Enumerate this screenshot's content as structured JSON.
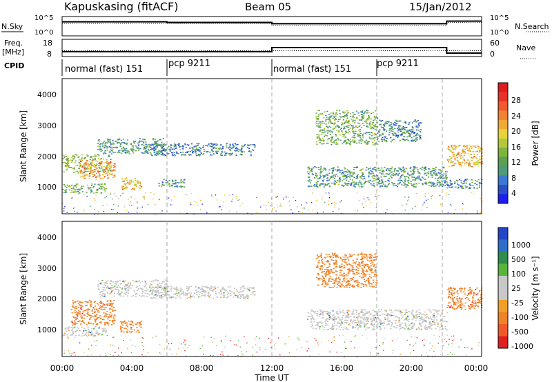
{
  "header": {
    "station": "Kapuskasing (fitACF)",
    "beam": "Beam 05",
    "date": "15/Jan/2012"
  },
  "noise_panel": {
    "left_label": "N.Sky",
    "right_label": "N.Search",
    "left_ticks": [
      "10^5",
      "10^0"
    ],
    "right_ticks": [
      "10^5",
      "10^0"
    ]
  },
  "freq_panel": {
    "left_label_top": "Freq.",
    "left_label_bottom": "[MHz]",
    "right_label": "Nave",
    "left_ticks": [
      "18",
      "8"
    ],
    "right_ticks": [
      "60",
      "0"
    ]
  },
  "cpid": {
    "label": "CPID",
    "segments": [
      {
        "text": "normal (fast) 151",
        "start_hour": 0
      },
      {
        "text": "pcp 9211",
        "start_hour": 6
      },
      {
        "text": "normal (fast) 151",
        "start_hour": 12
      },
      {
        "text": "pcp 9211",
        "start_hour": 18
      }
    ]
  },
  "range_axis": {
    "label": "Slant Range [km]",
    "ticks": [
      "1000",
      "2000",
      "3000",
      "4000"
    ]
  },
  "time_axis": {
    "label": "Time UT",
    "ticks": [
      "00:00",
      "04:00",
      "08:00",
      "12:00",
      "16:00",
      "20:00",
      "00:00"
    ]
  },
  "power_colorbar": {
    "label": "Power [dB]",
    "ticks": [
      "4",
      "8",
      "12",
      "16",
      "20",
      "24",
      "28"
    ],
    "colors": [
      "#1e1ef0",
      "#2a50c8",
      "#3c7ad2",
      "#4f9a78",
      "#5aa050",
      "#7cb43c",
      "#b4c83c",
      "#e8d23c",
      "#f0aa32",
      "#f08232",
      "#f05a2d",
      "#e83228",
      "#dc1e1e"
    ]
  },
  "velocity_colorbar": {
    "label": "Velocity [m s⁻¹]",
    "ticks": [
      "1000",
      "500",
      "100",
      "25",
      "-25",
      "-100",
      "-500",
      "-1000"
    ],
    "colors": [
      "#2346c8",
      "#2e6ec8",
      "#2e8c50",
      "#5ab43c",
      "#c8c8c8",
      "#c8c8c8",
      "#f0a028",
      "#f08228",
      "#f05a28",
      "#e02020"
    ]
  },
  "chart_data": [
    {
      "type": "line",
      "title": "Kapuskasing (fitACF) Beam 05 15/Jan/2012",
      "series": [
        {
          "name": "N.Sky",
          "x_hours": [
            0,
            6,
            12,
            22,
            24
          ],
          "values_log10": [
            4.0,
            3.8,
            3.4,
            4.2,
            4.2
          ]
        },
        {
          "name": "N.Search",
          "x_hours": [
            0,
            6,
            12,
            22,
            24
          ],
          "values_log10": [
            3.5,
            3.4,
            2.8,
            3.8,
            3.8
          ]
        }
      ]
    },
    {
      "type": "line",
      "series": [
        {
          "name": "Freq.",
          "x_hours": [
            0,
            12,
            22,
            24
          ],
          "values": [
            10.5,
            13.5,
            9.5,
            9.5
          ]
        },
        {
          "name": "Nave",
          "x_hours": [
            0,
            12,
            22,
            24
          ],
          "values": [
            20,
            20,
            20,
            20
          ]
        }
      ]
    },
    {
      "type": "heatmap",
      "ylabel": "Slant Range [km]",
      "xlabel": "Time UT",
      "xlim_hours": [
        0,
        24
      ],
      "ylim_km": [
        180,
        4500
      ],
      "colorbar": "Power [dB]",
      "regions": [
        {
          "t0": 0.0,
          "t1": 2.5,
          "r0": 850,
          "r1": 1150,
          "value": 12
        },
        {
          "t0": 0.0,
          "t1": 2.8,
          "r0": 1500,
          "r1": 2100,
          "value": 14
        },
        {
          "t0": 1.0,
          "t1": 3.0,
          "r0": 1300,
          "r1": 1900,
          "value": 22
        },
        {
          "t0": 2.0,
          "t1": 5.8,
          "r0": 2100,
          "r1": 2600,
          "value": 10
        },
        {
          "t0": 3.3,
          "t1": 4.5,
          "r0": 950,
          "r1": 1350,
          "value": 20
        },
        {
          "t0": 5.0,
          "t1": 11.0,
          "r0": 2050,
          "r1": 2450,
          "value": 8
        },
        {
          "t0": 5.5,
          "t1": 7.0,
          "r0": 1050,
          "r1": 1300,
          "value": 10
        },
        {
          "t0": 14.0,
          "t1": 22.0,
          "r0": 1050,
          "r1": 1700,
          "value": 10
        },
        {
          "t0": 14.5,
          "t1": 18.0,
          "r0": 2400,
          "r1": 3500,
          "value": 12
        },
        {
          "t0": 18.0,
          "t1": 20.5,
          "r0": 2500,
          "r1": 3200,
          "value": 8
        },
        {
          "t0": 22.0,
          "t1": 24.0,
          "r0": 1000,
          "r1": 1300,
          "value": 9
        },
        {
          "t0": 22.0,
          "t1": 24.0,
          "r0": 1700,
          "r1": 2400,
          "value": 20
        }
      ]
    },
    {
      "type": "heatmap",
      "ylabel": "Slant Range [km]",
      "xlabel": "Time UT",
      "xlim_hours": [
        0,
        24
      ],
      "ylim_km": [
        180,
        4500
      ],
      "colorbar": "Velocity [m s⁻¹]",
      "regions": [
        {
          "t0": 0.0,
          "t1": 2.5,
          "r0": 850,
          "r1": 1150,
          "value": 0
        },
        {
          "t0": 0.5,
          "t1": 3.0,
          "r0": 1200,
          "r1": 2000,
          "value": -400
        },
        {
          "t0": 2.0,
          "t1": 6.0,
          "r0": 2100,
          "r1": 2650,
          "value": 0
        },
        {
          "t0": 3.3,
          "t1": 4.5,
          "r0": 950,
          "r1": 1350,
          "value": -300
        },
        {
          "t0": 5.0,
          "t1": 11.0,
          "r0": 2050,
          "r1": 2450,
          "value": 0
        },
        {
          "t0": 14.0,
          "t1": 22.0,
          "r0": 1050,
          "r1": 1700,
          "value": 0
        },
        {
          "t0": 14.5,
          "t1": 18.0,
          "r0": 2400,
          "r1": 3500,
          "value": -150
        },
        {
          "t0": 22.0,
          "t1": 24.0,
          "r0": 1700,
          "r1": 2400,
          "value": -500
        }
      ]
    }
  ]
}
